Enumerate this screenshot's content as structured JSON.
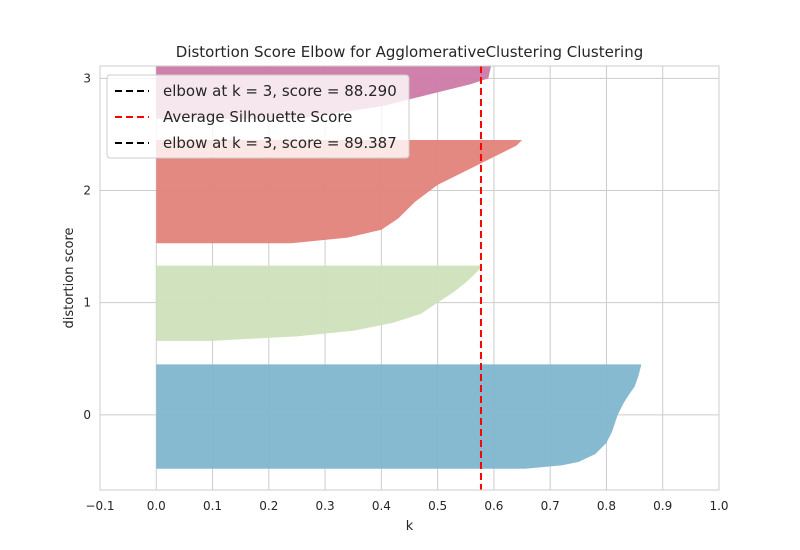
{
  "chart_data": {
    "type": "area",
    "title": "Distortion Score Elbow for AgglomerativeClustering Clustering",
    "xlabel": "k",
    "ylabel": "distortion score",
    "xlim": [
      -0.1,
      1.0
    ],
    "ylim": [
      -0.67,
      3.11
    ],
    "x_ticks": [
      "−0.1",
      "0.0",
      "0.1",
      "0.2",
      "0.3",
      "0.4",
      "0.5",
      "0.6",
      "0.7",
      "0.8",
      "0.9",
      "1.0"
    ],
    "x_tick_values": [
      -0.1,
      0.0,
      0.1,
      0.2,
      0.3,
      0.4,
      0.5,
      0.6,
      0.7,
      0.8,
      0.9,
      1.0
    ],
    "y_ticks": [
      "0",
      "1",
      "2",
      "3"
    ],
    "y_tick_values": [
      0,
      1,
      2,
      3
    ],
    "grid": true,
    "legend_position": "top-left",
    "legend": [
      {
        "label": "elbow at k = 3, score = 88.290",
        "style": "dashed",
        "color": "#000000"
      },
      {
        "label": "Average Silhouette Score",
        "style": "dashed",
        "color": "#ff0000"
      },
      {
        "label": "elbow at k = 3, score = 89.387",
        "style": "dashed",
        "color": "#000000"
      }
    ],
    "average_line": {
      "x": 0.577,
      "color": "#ff0000"
    },
    "series": [
      {
        "cluster": "0",
        "color": "#7fb6cf",
        "y_range": [
          -0.48,
          0.45
        ],
        "profile": [
          [
            -0.48,
            0.655
          ],
          [
            -0.45,
            0.72
          ],
          [
            -0.42,
            0.75
          ],
          [
            -0.35,
            0.78
          ],
          [
            -0.25,
            0.8
          ],
          [
            -0.15,
            0.81
          ],
          [
            0.0,
            0.82
          ],
          [
            0.1,
            0.83
          ],
          [
            0.18,
            0.84
          ],
          [
            0.25,
            0.85
          ],
          [
            0.35,
            0.857
          ],
          [
            0.45,
            0.862
          ]
        ]
      },
      {
        "cluster": "1",
        "color": "#cfe0ba",
        "y_range": [
          0.66,
          1.33
        ],
        "profile": [
          [
            0.66,
            0.1
          ],
          [
            0.7,
            0.25
          ],
          [
            0.75,
            0.35
          ],
          [
            0.82,
            0.42
          ],
          [
            0.9,
            0.47
          ],
          [
            1.0,
            0.5
          ],
          [
            1.1,
            0.53
          ],
          [
            1.18,
            0.55
          ],
          [
            1.25,
            0.565
          ],
          [
            1.3,
            0.575
          ],
          [
            1.33,
            0.578
          ]
        ]
      },
      {
        "cluster": "2",
        "color": "#e3827b",
        "y_range": [
          1.53,
          2.45
        ],
        "profile": [
          [
            1.53,
            0.24
          ],
          [
            1.58,
            0.34
          ],
          [
            1.65,
            0.4
          ],
          [
            1.75,
            0.43
          ],
          [
            1.9,
            0.46
          ],
          [
            2.05,
            0.5
          ],
          [
            2.2,
            0.56
          ],
          [
            2.3,
            0.6
          ],
          [
            2.4,
            0.64
          ],
          [
            2.45,
            0.65
          ]
        ]
      },
      {
        "cluster": "3",
        "color": "#cc79a7",
        "y_range": [
          2.64,
          3.11
        ],
        "profile": [
          [
            2.64,
            0.25
          ],
          [
            2.75,
            0.4
          ],
          [
            2.85,
            0.48
          ],
          [
            2.95,
            0.56
          ],
          [
            3.0,
            0.59
          ],
          [
            3.11,
            0.595
          ]
        ]
      }
    ]
  }
}
